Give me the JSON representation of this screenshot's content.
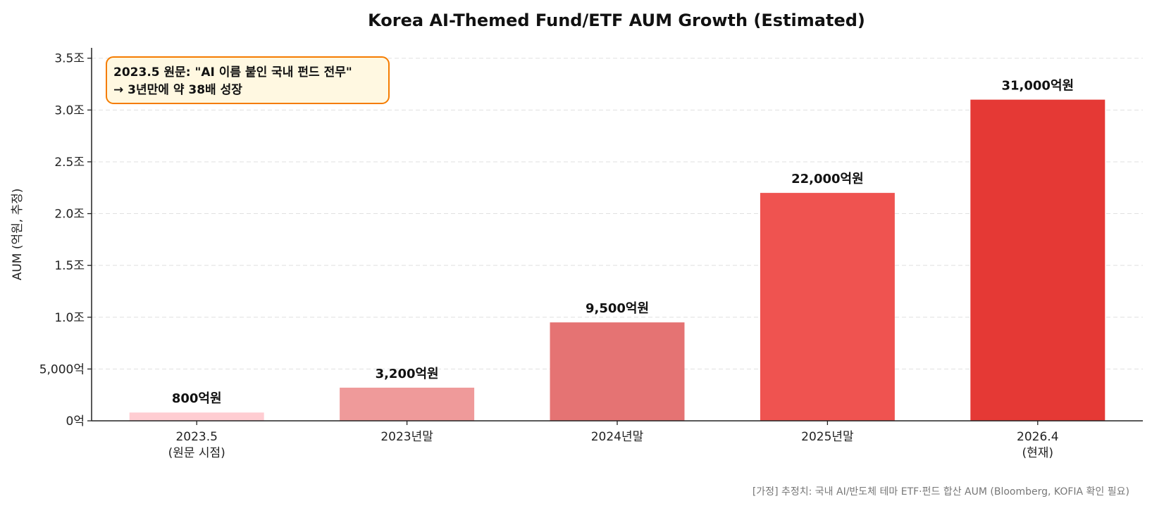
{
  "chart_data": {
    "type": "bar",
    "title": "Korea AI-Themed Fund/ETF AUM Growth (Estimated)",
    "xlabel": "",
    "ylabel": "AUM (억원, 추정)",
    "unit": "억원",
    "categories": [
      [
        "2023.5",
        "(원문 시점)"
      ],
      [
        "2023년말"
      ],
      [
        "2024년말"
      ],
      [
        "2025년말"
      ],
      [
        "2026.4",
        "(현재)"
      ]
    ],
    "values": [
      800,
      3200,
      9500,
      22000,
      31000
    ],
    "data_labels": [
      "800억원",
      "3,200억원",
      "9,500억원",
      "22,000억원",
      "31,000억원"
    ],
    "colors": [
      "#ffcdd2",
      "#ef9a9a",
      "#e57373",
      "#ef5350",
      "#e53935"
    ],
    "ylim": [
      0,
      36000
    ],
    "yticks": [
      0,
      5000,
      10000,
      15000,
      20000,
      25000,
      30000,
      35000
    ],
    "ytick_labels": [
      "0억",
      "5,000억",
      "1.0조",
      "1.5조",
      "2.0조",
      "2.5조",
      "3.0조",
      "3.5조"
    ],
    "grid": "y-dashed",
    "annotation": {
      "lines": [
        "2023.5 원문: \"AI 이름 붙인 국내 펀드 전무\"",
        "→ 3년만에 약 38배 성장"
      ],
      "border_color": "#f57c00",
      "fill_color": "#fff8e1"
    },
    "footnote": "[가정] 추정치: 국내 AI/반도체 테마 ETF·펀드 합산 AUM (Bloomberg, KOFIA 확인 필요)"
  }
}
